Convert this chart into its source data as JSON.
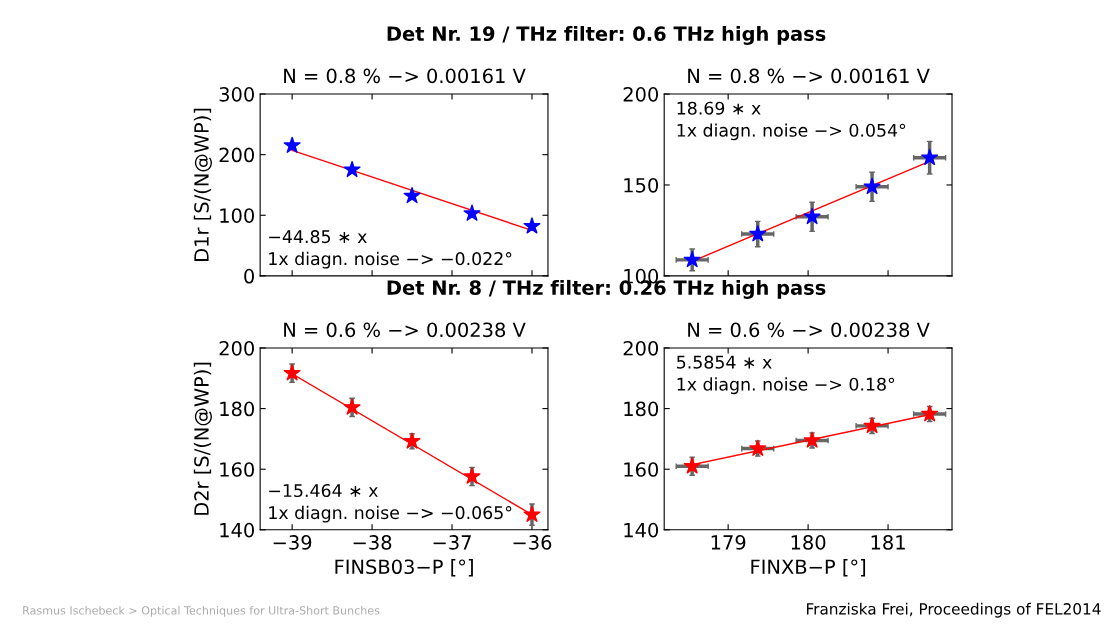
{
  "chart_data": [
    {
      "type": "scatter",
      "title": "Det Nr. 19 / THz filter: 0.6 THz high pass",
      "subtitle": "N = 0.8 % −> 0.00161 V",
      "ylabel": "D1r [S/(N@WP)]",
      "xlim": [
        -39.4,
        -35.8
      ],
      "xticks": [
        {
          "value": -39,
          "label": null
        },
        {
          "value": -38,
          "label": null
        },
        {
          "value": -37,
          "label": null
        },
        {
          "value": -36,
          "label": null
        }
      ],
      "ylim": [
        0,
        300
      ],
      "yticks": [
        0,
        100,
        200,
        300
      ],
      "tick_labels": "y",
      "grid": false,
      "legend": false,
      "series": [
        {
          "type": "line",
          "color": "#ff0000",
          "x": [
            -39,
            -36
          ],
          "values": [
            207,
            75
          ],
          "marker": "none",
          "line_style": "solid"
        },
        {
          "type": "scatter",
          "color": "#0000ff",
          "x": [
            -39,
            -38.25,
            -37.5,
            -36.75,
            -36
          ],
          "values": [
            215,
            175,
            132,
            103,
            82
          ],
          "marker": "star"
        }
      ],
      "annotations": [
        "−44.85 ∗ x",
        "1x diagn. noise −> −0.022°"
      ]
    },
    {
      "type": "scatter",
      "subtitle": "N = 0.8 % −> 0.00161 V",
      "xlim": [
        178.2,
        181.8
      ],
      "xticks": [
        {
          "value": 179,
          "label": null
        },
        {
          "value": 180,
          "label": null
        },
        {
          "value": 181,
          "label": null
        }
      ],
      "ylim": [
        100,
        200
      ],
      "yticks": [
        100,
        150,
        200
      ],
      "tick_labels": "y",
      "grid": false,
      "legend": false,
      "series": [
        {
          "type": "line",
          "color": "#ff0000",
          "x": [
            178.55,
            181.52
          ],
          "values": [
            108,
            163
          ],
          "marker": "none",
          "line_style": "solid"
        },
        {
          "type": "scatter",
          "color": "#0000ff",
          "x": [
            178.55,
            179.37,
            180.05,
            180.8,
            181.52
          ],
          "values": [
            108.8,
            123,
            132.5,
            149,
            165
          ],
          "errors": [
            6,
            7,
            8,
            8,
            9
          ],
          "xerrors": [
            0.2,
            0.2,
            0.2,
            0.2,
            0.2
          ],
          "marker": "star"
        }
      ],
      "annotations": [
        "18.69 ∗ x",
        "1x diagn. noise −> 0.054°"
      ]
    },
    {
      "type": "scatter",
      "title": "Det Nr. 8 / THz filter: 0.26 THz high pass",
      "subtitle": "N = 0.6 % −> 0.00238 V",
      "xlabel": "FINSB03−P [°]",
      "ylabel": "D2r [S/(N@WP)]",
      "xlim": [
        -39.4,
        -35.8
      ],
      "xticks": [
        {
          "value": -39,
          "label": "−39"
        },
        {
          "value": -38,
          "label": "−38"
        },
        {
          "value": -37,
          "label": "−37"
        },
        {
          "value": -36,
          "label": "−36"
        }
      ],
      "ylim": [
        140,
        200
      ],
      "yticks": [
        140,
        160,
        180,
        200
      ],
      "grid": false,
      "legend": false,
      "series": [
        {
          "type": "line",
          "color": "#ff0000",
          "x": [
            -39,
            -36
          ],
          "values": [
            191.5,
            145
          ],
          "marker": "none",
          "line_style": "solid"
        },
        {
          "type": "scatter",
          "color": "#ff0000",
          "x": [
            -39,
            -38.25,
            -37.5,
            -36.75,
            -36
          ],
          "values": [
            191.7,
            180.4,
            169.2,
            157.6,
            145
          ],
          "errors": [
            3,
            3,
            2.5,
            3,
            3.5
          ],
          "marker": "star"
        }
      ],
      "annotations": [
        "−15.464 ∗ x",
        "1x diagn. noise −> −0.065°"
      ]
    },
    {
      "type": "scatter",
      "subtitle": "N = 0.6 % −> 0.00238 V",
      "xlabel": "FINXB−P [°]",
      "xlim": [
        178.2,
        181.8
      ],
      "xticks": [
        179,
        180,
        181
      ],
      "ylim": [
        140,
        200
      ],
      "yticks": [
        140,
        160,
        180,
        200
      ],
      "grid": false,
      "legend": false,
      "series": [
        {
          "type": "line",
          "color": "#ff0000",
          "x": [
            178.55,
            181.52
          ],
          "values": [
            161.5,
            178
          ],
          "marker": "none",
          "line_style": "solid"
        },
        {
          "type": "scatter",
          "color": "#ff0000",
          "x": [
            178.55,
            179.37,
            180.05,
            180.8,
            181.52
          ],
          "values": [
            161,
            166.8,
            169.5,
            174.3,
            178.2
          ],
          "errors": [
            3,
            2.5,
            2.5,
            2.5,
            2.5
          ],
          "xerrors": [
            0.2,
            0.2,
            0.2,
            0.2,
            0.2
          ],
          "marker": "star"
        }
      ],
      "annotations": [
        "5.5854 ∗ x",
        "1x diagn. noise −> 0.18°",
        "Rasmus Ischebeck > Optical Techniques for Ultra-Short Bunches",
        "Franziska Frei, Proceedings of FEL2014"
      ]
    }
  ]
}
